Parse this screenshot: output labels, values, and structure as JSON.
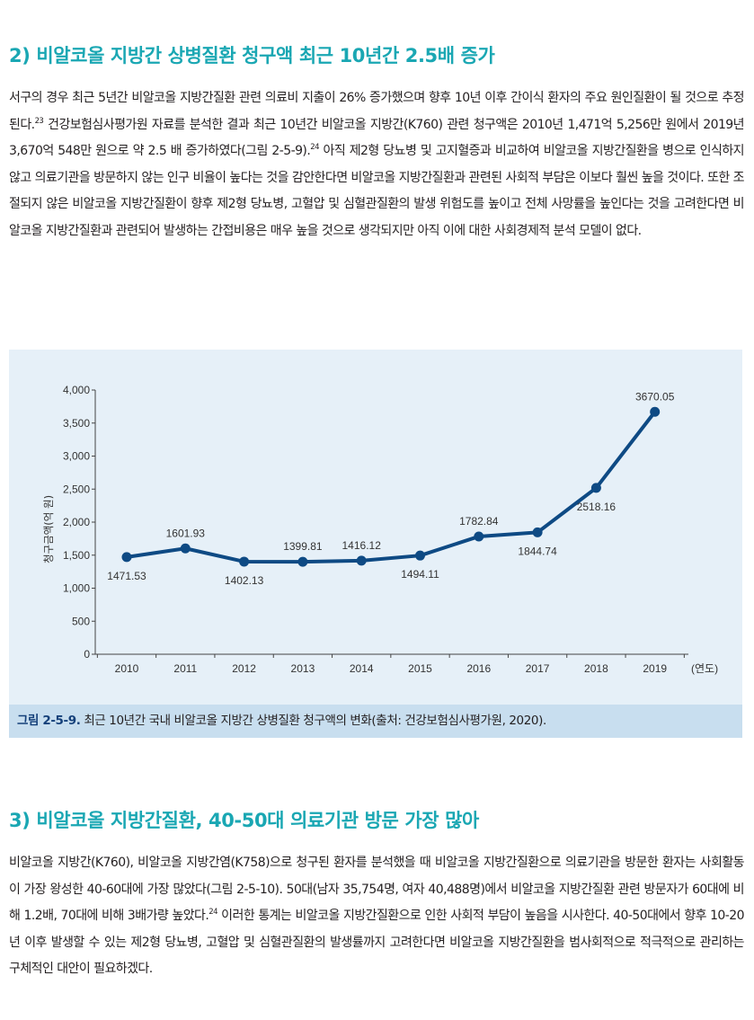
{
  "section2": {
    "heading": "2) 비알코올 지방간 상병질환 청구액 최근 10년간 2.5배 증가",
    "paragraph": {
      "p1": "서구의 경우 최근 5년간 비알코올 지방간질환 관련 의료비 지출이 26% 증가했으며 향후 10년 이후 간이식 환자의 주요 원인질환이 될 것으로 추정된다.",
      "ref1": "23",
      "p2": " 건강보험심사평가원 자료를 분석한 결과 최근 10년간 비알코올 지방간(K760) 관련 청구액은 2010년 1,471억 5,256만 원에서 2019년 3,670억 548만 원으로 약 2.5 배 증가하였다(그림 2-5-9).",
      "ref2": "24",
      "p3": " 아직 제2형 당뇨병 및 고지혈증과 비교하여 비알코올 지방간질환을 병으로 인식하지 않고 의료기관을 방문하지 않는 인구 비율이 높다는 것을 감안한다면 비알코올 지방간질환과 관련된 사회적 부담은 이보다 훨씬 높을 것이다. 또한 조절되지 않은 비알코올 지방간질환이 향후 제2형 당뇨병, 고혈압 및 심혈관질환의 발생 위험도를 높이고 전체 사망률을 높인다는 것을 고려한다면 비알코올 지방간질환과 관련되어 발생하는 간접비용은 매우 높을 것으로 생각되지만 아직 이에 대한 사회경제적 분석 모델이 없다."
    }
  },
  "figure": {
    "caption_label": "그림 2-5-9.",
    "caption_text": " 최근 10년간 국내 비알코올 지방간 상병질환 청구액의 변화(출처: 건강보험심사평가원, 2020)."
  },
  "chart_data": {
    "type": "line",
    "title": "",
    "x": [
      "2010",
      "2011",
      "2012",
      "2013",
      "2014",
      "2015",
      "2016",
      "2017",
      "2018",
      "2019"
    ],
    "values": [
      1471.53,
      1601.93,
      1402.13,
      1399.81,
      1416.12,
      1494.11,
      1782.84,
      1844.74,
      2518.16,
      3670.05
    ],
    "data_labels": [
      "1471.53",
      "1601.93",
      "1402.13",
      "1399.81",
      "1416.12",
      "1494.11",
      "1782.84",
      "1844.74",
      "2518.16",
      "3670.05"
    ],
    "label_position": [
      "below",
      "above",
      "below",
      "above",
      "above",
      "below",
      "above",
      "below",
      "below",
      "above"
    ],
    "ylim": [
      0,
      4000
    ],
    "yticks": [
      0,
      500,
      1000,
      1500,
      2000,
      2500,
      3000,
      3500,
      4000
    ],
    "ytick_labels": [
      "0",
      "500",
      "1,000",
      "1,500",
      "2,000",
      "2,500",
      "3,000",
      "3,500",
      "4,000"
    ],
    "ylabel": "청구금액(억 원)",
    "xlabel": "(연도)",
    "line_color": "#0e4a84",
    "grid": false
  },
  "section3": {
    "heading": "3) 비알코올 지방간질환, 40-50대 의료기관 방문 가장 많아",
    "paragraph": {
      "p1": "비알코올 지방간(K760), 비알코올 지방간염(K758)으로 청구된 환자를 분석했을 때 비알코올 지방간질환으로 의료기관을 방문한 환자는 사회활동이 가장 왕성한 40-60대에 가장 많았다(그림 2-5-10). 50대(남자 35,754명, 여자 40,488명)에서 비알코올 지방간질환 관련 방문자가 60대에 비해 1.2배, 70대에 비해 3배가량 높았다.",
      "ref1": "24",
      "p2": " 이러한 통계는 비알코올 지방간질환으로 인한 사회적 부담이 높음을 시사한다. 40-50대에서 향후 10-20년 이후 발생할 수 있는 제2형 당뇨병, 고혈압 및 심혈관질환의 발생률까지 고려한다면 비알코올 지방간질환을 범사회적으로 적극적으로 관리하는 구체적인 대안이 필요하겠다."
    }
  },
  "colors": {
    "heading": "#1aa7b3",
    "figure_bg": "#e6f0f8",
    "caption_bg": "#c8deef",
    "caption_label": "#15407a"
  }
}
